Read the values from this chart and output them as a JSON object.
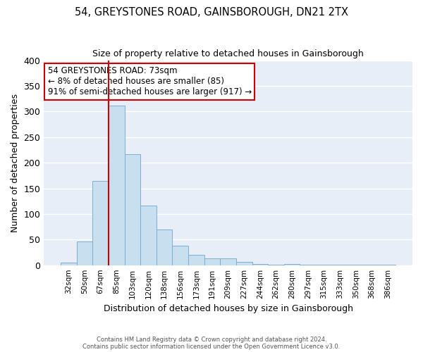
{
  "title": "54, GREYSTONES ROAD, GAINSBOROUGH, DN21 2TX",
  "subtitle": "Size of property relative to detached houses in Gainsborough",
  "xlabel": "Distribution of detached houses by size in Gainsborough",
  "ylabel": "Number of detached properties",
  "bin_labels": [
    "32sqm",
    "50sqm",
    "67sqm",
    "85sqm",
    "103sqm",
    "120sqm",
    "138sqm",
    "156sqm",
    "173sqm",
    "191sqm",
    "209sqm",
    "227sqm",
    "244sqm",
    "262sqm",
    "280sqm",
    "297sqm",
    "315sqm",
    "333sqm",
    "350sqm",
    "368sqm",
    "386sqm"
  ],
  "bar_heights": [
    5,
    46,
    164,
    311,
    216,
    116,
    69,
    38,
    20,
    13,
    13,
    6,
    2,
    1,
    2,
    1,
    1,
    1,
    1,
    1,
    1
  ],
  "bar_color": "#c8dff0",
  "bar_edge_color": "#7bafd4",
  "vline_color": "#cc0000",
  "annotation_lines": [
    "54 GREYSTONES ROAD: 73sqm",
    "← 8% of detached houses are smaller (85)",
    "91% of semi-detached houses are larger (917) →"
  ],
  "annotation_box_color": "#cc0000",
  "annotation_bg_color": "#ffffff",
  "ylim": [
    0,
    400
  ],
  "yticks": [
    0,
    50,
    100,
    150,
    200,
    250,
    300,
    350,
    400
  ],
  "footer_line1": "Contains HM Land Registry data © Crown copyright and database right 2024.",
  "footer_line2": "Contains public sector information licensed under the Open Government Licence v3.0.",
  "background_color": "#e8eef8",
  "grid_color": "#ffffff",
  "fig_bg_color": "#ffffff"
}
